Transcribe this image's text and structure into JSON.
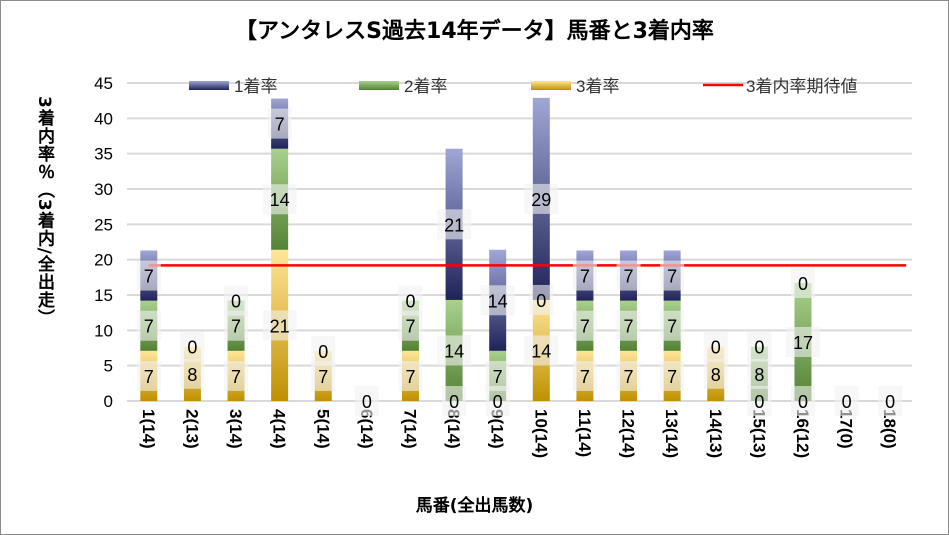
{
  "chart_data": {
    "type": "bar",
    "stacked": true,
    "title": "【アンタレスS過去14年データ】馬番と3着内率",
    "xlabel": "馬番(全出馬数)",
    "ylabel": "3着内率％（3着内/全出走）",
    "ylim": [
      0,
      45
    ],
    "yticks": [
      "0",
      "5",
      "10",
      "15",
      "20",
      "25",
      "30",
      "35",
      "40",
      "45"
    ],
    "grid": true,
    "legend_position": "top",
    "categories": [
      "1(14)",
      "2(13)",
      "3(14)",
      "4(14)",
      "5(14)",
      "6(14)",
      "7(14)",
      "8(14)",
      "9(14)",
      "10(14)",
      "11(14)",
      "12(14)",
      "13(14)",
      "14(13)",
      "15(13)",
      "16(12)",
      "17(0)",
      "18(0)"
    ],
    "series": [
      {
        "name": "3着率",
        "color_top": "#ffe699",
        "color_bottom": "#bf9000",
        "values": [
          7.1,
          7.7,
          7.1,
          21.4,
          7.1,
          0,
          7.1,
          0,
          0,
          14.3,
          7.1,
          7.1,
          7.1,
          7.7,
          0,
          0,
          0,
          0
        ],
        "labels": [
          "7",
          "8",
          "7",
          "21",
          "7",
          "0",
          "7",
          "0",
          "0",
          "14",
          "7",
          "7",
          "7",
          "8",
          "0",
          "0",
          "0",
          "0"
        ]
      },
      {
        "name": "2着率",
        "color_top": "#a9d18e",
        "color_bottom": "#548235",
        "values": [
          7.1,
          0,
          7.1,
          14.3,
          0,
          0,
          7.1,
          14.3,
          7.1,
          0,
          7.1,
          7.1,
          7.1,
          0,
          7.7,
          16.7,
          0,
          0
        ],
        "labels": [
          "7",
          "0",
          "7",
          "14",
          "0",
          null,
          "7",
          "14",
          "7",
          "0",
          "7",
          "7",
          "7",
          "0",
          "8",
          "17",
          null,
          null
        ]
      },
      {
        "name": "1着率",
        "color_top": "#a0a6d6",
        "color_bottom": "#1f2358",
        "values": [
          7.1,
          0,
          0,
          7.1,
          0,
          0,
          0,
          21.4,
          14.3,
          28.6,
          7.1,
          7.1,
          7.1,
          0,
          0,
          0,
          0,
          0
        ],
        "labels": [
          "7",
          null,
          "0",
          "7",
          null,
          null,
          "0",
          "21",
          "14",
          "29",
          "7",
          "7",
          "7",
          null,
          "0",
          "0",
          null,
          null
        ]
      }
    ],
    "reference_line": {
      "name": "3着内率期待値",
      "value": 19.2,
      "color": "#ff0000"
    },
    "legend_order": [
      "1着率",
      "2着率",
      "3着率",
      "3着内率期待値"
    ]
  }
}
